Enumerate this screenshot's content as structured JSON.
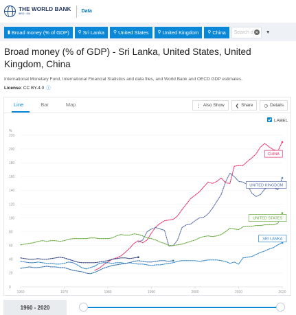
{
  "header": {
    "brand_name": "THE WORLD BANK",
    "brand_sub": "IBRD · IDA",
    "section": "Data"
  },
  "filters": {
    "chips": [
      {
        "icon": "bar-chart-icon",
        "label": "Broad money (% of GDP)"
      },
      {
        "icon": "map-pin-icon",
        "label": "Sri Lanka"
      },
      {
        "icon": "map-pin-icon",
        "label": "United States"
      },
      {
        "icon": "map-pin-icon",
        "label": "United Kingdom"
      },
      {
        "icon": "map-pin-icon",
        "label": "China"
      }
    ],
    "search_placeholder": "Search d"
  },
  "page": {
    "title": "Broad money (% of GDP) - Sri Lanka, United States, United Kingdom, China",
    "source": "International Monetary Fund, International Financial Statistics and data files, and World Bank and OECD GDP estimates.",
    "license_label": "License",
    "license_value": ": CC BY-4.0"
  },
  "tabs": [
    {
      "label": "Line"
    },
    {
      "label": "Bar"
    },
    {
      "label": "Map"
    }
  ],
  "actions": {
    "also_show": "Also Show",
    "share": "Share",
    "details": "Details"
  },
  "label_toggle": "LABEL",
  "slider": {
    "range": "1960 - 2020",
    "start_fraction": 0,
    "end_fraction": 1
  },
  "colors": {
    "accent": "#0a87d7",
    "china": "#e2336e",
    "uk": "#5a6fa6",
    "us": "#67aa3f",
    "sri_lanka": "#2f83c4"
  },
  "chart_data": {
    "type": "line",
    "y_unit": "%",
    "ylim": [
      0,
      220
    ],
    "xlim": [
      1960,
      2020
    ],
    "yticks": [
      "0",
      "20",
      "40",
      "60",
      "80",
      "100",
      "120",
      "140",
      "160",
      "180",
      "200",
      "220"
    ],
    "xticks": [
      "1960",
      "1970",
      "1980",
      "1990",
      "2000",
      "2010",
      "2020"
    ],
    "series": [
      {
        "name": "CHINA",
        "color": "#e2336e",
        "points": [
          [
            1977,
            24
          ],
          [
            1978,
            27
          ],
          [
            1979,
            32
          ],
          [
            1980,
            36
          ],
          [
            1981,
            40
          ],
          [
            1982,
            42
          ],
          [
            1983,
            45
          ],
          [
            1984,
            50
          ],
          [
            1985,
            56
          ],
          [
            1986,
            63
          ],
          [
            1987,
            67
          ],
          [
            1988,
            64
          ],
          [
            1989,
            68
          ],
          [
            1990,
            78
          ],
          [
            1991,
            87
          ],
          [
            1992,
            92
          ],
          [
            1993,
            96
          ],
          [
            1994,
            97
          ],
          [
            1995,
            98
          ],
          [
            1996,
            103
          ],
          [
            1997,
            112
          ],
          [
            1998,
            120
          ],
          [
            1999,
            128
          ],
          [
            2000,
            133
          ],
          [
            2001,
            138
          ],
          [
            2002,
            145
          ],
          [
            2003,
            152
          ],
          [
            2004,
            150
          ],
          [
            2005,
            153
          ],
          [
            2006,
            158
          ],
          [
            2007,
            151
          ],
          [
            2008,
            150
          ],
          [
            2009,
            175
          ],
          [
            2010,
            176
          ],
          [
            2011,
            176
          ],
          [
            2012,
            182
          ],
          [
            2013,
            187
          ],
          [
            2014,
            193
          ],
          [
            2015,
            203
          ],
          [
            2016,
            208
          ],
          [
            2017,
            203
          ],
          [
            2018,
            199
          ],
          [
            2019,
            197
          ],
          [
            2020,
            210
          ]
        ]
      },
      {
        "name": "UNITED KINGDOM",
        "color": "#5a6fa6",
        "points": [
          [
            1987,
            65
          ],
          [
            1988,
            68
          ],
          [
            1989,
            80
          ],
          [
            1990,
            84
          ],
          [
            1991,
            86
          ],
          [
            1992,
            84
          ],
          [
            1993,
            82
          ],
          [
            1994,
            59
          ],
          [
            1995,
            60
          ],
          [
            1996,
            68
          ],
          [
            1997,
            86
          ],
          [
            1998,
            90
          ],
          [
            1999,
            91
          ],
          [
            2000,
            96
          ],
          [
            2001,
            100
          ],
          [
            2002,
            101
          ],
          [
            2003,
            106
          ],
          [
            2004,
            114
          ],
          [
            2005,
            124
          ],
          [
            2006,
            134
          ],
          [
            2007,
            152
          ],
          [
            2008,
            165
          ],
          [
            2009,
            160
          ],
          [
            2010,
            153
          ],
          [
            2011,
            152
          ],
          [
            2012,
            148
          ],
          [
            2013,
            136
          ],
          [
            2014,
            131
          ],
          [
            2015,
            134
          ],
          [
            2016,
            142
          ],
          [
            2017,
            146
          ],
          [
            2018,
            144
          ],
          [
            2019,
            141
          ],
          [
            2020,
            158
          ]
        ]
      },
      {
        "name": "UNITED STATES",
        "color": "#67aa3f",
        "points": [
          [
            1960,
            61
          ],
          [
            1961,
            62
          ],
          [
            1962,
            63
          ],
          [
            1963,
            64
          ],
          [
            1964,
            66
          ],
          [
            1965,
            67
          ],
          [
            1966,
            66
          ],
          [
            1967,
            67
          ],
          [
            1968,
            67
          ],
          [
            1969,
            66
          ],
          [
            1970,
            67
          ],
          [
            1971,
            69
          ],
          [
            1972,
            70
          ],
          [
            1973,
            70
          ],
          [
            1974,
            70
          ],
          [
            1975,
            70
          ],
          [
            1976,
            71
          ],
          [
            1977,
            71
          ],
          [
            1978,
            70
          ],
          [
            1979,
            70
          ],
          [
            1980,
            70
          ],
          [
            1981,
            71
          ],
          [
            1982,
            74
          ],
          [
            1983,
            76
          ],
          [
            1984,
            75
          ],
          [
            1985,
            75
          ],
          [
            1986,
            77
          ],
          [
            1987,
            76
          ],
          [
            1988,
            74
          ],
          [
            1989,
            71
          ],
          [
            1990,
            70
          ],
          [
            1991,
            68
          ],
          [
            1992,
            65
          ],
          [
            1993,
            63
          ],
          [
            1994,
            60
          ],
          [
            1995,
            60
          ],
          [
            1996,
            61
          ],
          [
            1997,
            62
          ],
          [
            1998,
            64
          ],
          [
            1999,
            66
          ],
          [
            2000,
            68
          ],
          [
            2001,
            71
          ],
          [
            2002,
            73
          ],
          [
            2003,
            74
          ],
          [
            2004,
            73
          ],
          [
            2005,
            74
          ],
          [
            2006,
            76
          ],
          [
            2007,
            80
          ],
          [
            2008,
            85
          ],
          [
            2009,
            84
          ],
          [
            2010,
            83
          ],
          [
            2011,
            87
          ],
          [
            2012,
            88
          ],
          [
            2013,
            88
          ],
          [
            2014,
            89
          ],
          [
            2015,
            89
          ],
          [
            2016,
            90
          ],
          [
            2017,
            90
          ],
          [
            2018,
            90
          ],
          [
            2019,
            92
          ],
          [
            2020,
            107
          ]
        ]
      },
      {
        "name": "SRI LANKA",
        "color": "#2f83c4",
        "points": [
          [
            1960,
            37
          ],
          [
            1961,
            36
          ],
          [
            1962,
            35
          ],
          [
            1963,
            35
          ],
          [
            1964,
            36
          ],
          [
            1965,
            35
          ],
          [
            1966,
            34
          ],
          [
            1967,
            34
          ],
          [
            1968,
            33
          ],
          [
            1969,
            33
          ],
          [
            1970,
            34
          ],
          [
            1971,
            36
          ],
          [
            1972,
            35
          ],
          [
            1973,
            32
          ],
          [
            1974,
            28
          ],
          [
            1975,
            26
          ],
          [
            1976,
            28
          ],
          [
            1977,
            30
          ],
          [
            1978,
            34
          ],
          [
            1979,
            35
          ],
          [
            1980,
            35
          ],
          [
            1981,
            34
          ],
          [
            1982,
            35
          ],
          [
            1983,
            35
          ],
          [
            1984,
            34
          ],
          [
            1985,
            35
          ],
          [
            1986,
            34
          ],
          [
            1987,
            33
          ],
          [
            1988,
            33
          ],
          [
            1989,
            32
          ],
          [
            1990,
            31
          ],
          [
            1991,
            32
          ],
          [
            1992,
            32
          ],
          [
            1993,
            33
          ],
          [
            1994,
            34
          ],
          [
            1995,
            35
          ],
          [
            1996,
            37
          ],
          [
            1997,
            38
          ],
          [
            1998,
            38
          ],
          [
            1999,
            38
          ],
          [
            2000,
            38
          ],
          [
            2001,
            37
          ],
          [
            2002,
            38
          ],
          [
            2003,
            39
          ],
          [
            2004,
            39
          ],
          [
            2005,
            39
          ],
          [
            2006,
            38
          ],
          [
            2007,
            37
          ],
          [
            2008,
            34
          ],
          [
            2009,
            36
          ],
          [
            2010,
            33
          ],
          [
            2011,
            42
          ],
          [
            2012,
            43
          ],
          [
            2013,
            44
          ],
          [
            2014,
            47
          ],
          [
            2015,
            50
          ],
          [
            2016,
            52
          ],
          [
            2017,
            55
          ],
          [
            2018,
            57
          ],
          [
            2019,
            61
          ],
          [
            2020,
            64
          ]
        ]
      },
      {
        "name": "",
        "color": "#2c6fb0",
        "points": [
          [
            1960,
            27
          ],
          [
            1961,
            28
          ],
          [
            1962,
            29
          ],
          [
            1963,
            28
          ],
          [
            1964,
            28
          ],
          [
            1965,
            29
          ],
          [
            1966,
            30
          ],
          [
            1967,
            29
          ],
          [
            1968,
            29
          ],
          [
            1969,
            28
          ],
          [
            1970,
            28
          ],
          [
            1971,
            26
          ],
          [
            1972,
            24
          ],
          [
            1973,
            23
          ],
          [
            1974,
            22
          ],
          [
            1975,
            20
          ],
          [
            1976,
            19
          ],
          [
            1977,
            21
          ],
          [
            1978,
            24
          ],
          [
            1979,
            27
          ],
          [
            1980,
            29
          ],
          [
            1981,
            31
          ],
          [
            1982,
            32
          ],
          [
            1983,
            33
          ],
          [
            1984,
            34
          ],
          [
            1985,
            35
          ],
          [
            1986,
            37
          ],
          [
            1987,
            38
          ],
          [
            1988,
            37
          ],
          [
            1989,
            36
          ],
          [
            1990,
            36
          ],
          [
            1991,
            37
          ],
          [
            1992,
            38
          ],
          [
            1993,
            38
          ],
          [
            1994,
            37
          ],
          [
            1995,
            38
          ]
        ]
      },
      {
        "name": "",
        "color": "#2f3f7a",
        "points": [
          [
            1960,
            42
          ],
          [
            1961,
            41
          ],
          [
            1962,
            40
          ],
          [
            1963,
            40
          ],
          [
            1964,
            41
          ],
          [
            1965,
            40
          ],
          [
            1966,
            40
          ],
          [
            1967,
            41
          ],
          [
            1968,
            42
          ],
          [
            1969,
            43
          ],
          [
            1970,
            42
          ],
          [
            1971,
            40
          ],
          [
            1972,
            38
          ],
          [
            1973,
            36
          ],
          [
            1974,
            35
          ],
          [
            1975,
            35
          ],
          [
            1976,
            35
          ],
          [
            1977,
            35
          ],
          [
            1978,
            36
          ],
          [
            1979,
            37
          ],
          [
            1980,
            38
          ],
          [
            1981,
            40
          ],
          [
            1982,
            41
          ],
          [
            1983,
            42
          ],
          [
            1984,
            42
          ],
          [
            1985,
            41
          ],
          [
            1986,
            42
          ],
          [
            1987,
            43
          ]
        ]
      }
    ],
    "labels": [
      {
        "text": "CHINA",
        "series": 0,
        "year": 2018,
        "value": 193
      },
      {
        "text": "UNITED KINGDOM",
        "series": 1,
        "year": 2017,
        "value": 148
      },
      {
        "text": "UNITED STATES",
        "series": 2,
        "year": 2017,
        "value": 100
      },
      {
        "text": "SRI LANKA",
        "series": 3,
        "year": 2018,
        "value": 70
      }
    ]
  }
}
